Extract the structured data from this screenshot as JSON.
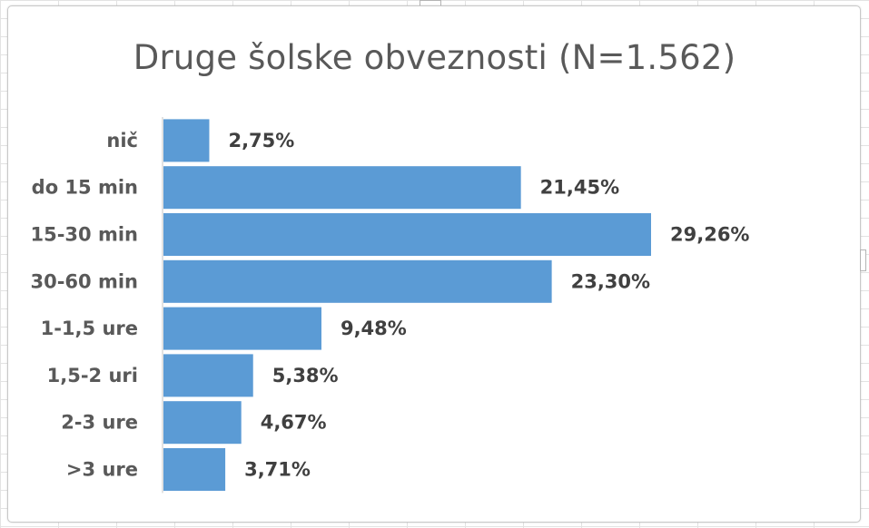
{
  "chart_data": {
    "type": "bar",
    "orientation": "horizontal",
    "title": "Druge šolske obveznosti (N=1.562)",
    "categories": [
      "nič",
      "do 15 min",
      "15-30 min",
      "30-60 min",
      "1-1,5 ure",
      "1,5-2 uri",
      "2-3 ure",
      ">3 ure"
    ],
    "values": [
      2.75,
      21.45,
      29.26,
      23.3,
      9.48,
      5.38,
      4.67,
      3.71
    ],
    "value_labels": [
      "2,75%",
      "21,45%",
      "29,26%",
      "23,30%",
      "9,48%",
      "5,38%",
      "4,67%",
      "3,71%"
    ],
    "xlabel": "",
    "ylabel": "",
    "grid": false,
    "bar_color": "#5b9bd5"
  }
}
